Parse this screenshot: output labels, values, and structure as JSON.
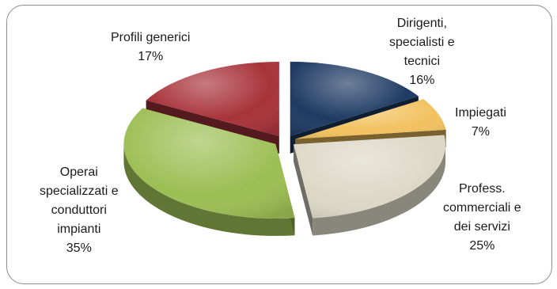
{
  "chart_data": {
    "type": "pie",
    "style": "3d-exploded",
    "title": "",
    "slices": [
      {
        "label": [
          "Dirigenti,",
          "specialisti e",
          "tecnici"
        ],
        "pct_text": "16%",
        "value": 16,
        "color": "#1f3b63"
      },
      {
        "label": [
          "Impiegati"
        ],
        "pct_text": "7%",
        "value": 7,
        "color": "#f2c260"
      },
      {
        "label": [
          "Profess.",
          "commerciali e",
          "dei servizi"
        ],
        "pct_text": "25%",
        "value": 25,
        "color": "#ddd8c6"
      },
      {
        "label": [
          "Operai",
          "specializzati e",
          "conduttori",
          "impianti"
        ],
        "pct_text": "35%",
        "value": 35,
        "color": "#9cbf54"
      },
      {
        "label": [
          "Profili generici"
        ],
        "pct_text": "17%",
        "value": 17,
        "color": "#a8333a"
      }
    ]
  }
}
